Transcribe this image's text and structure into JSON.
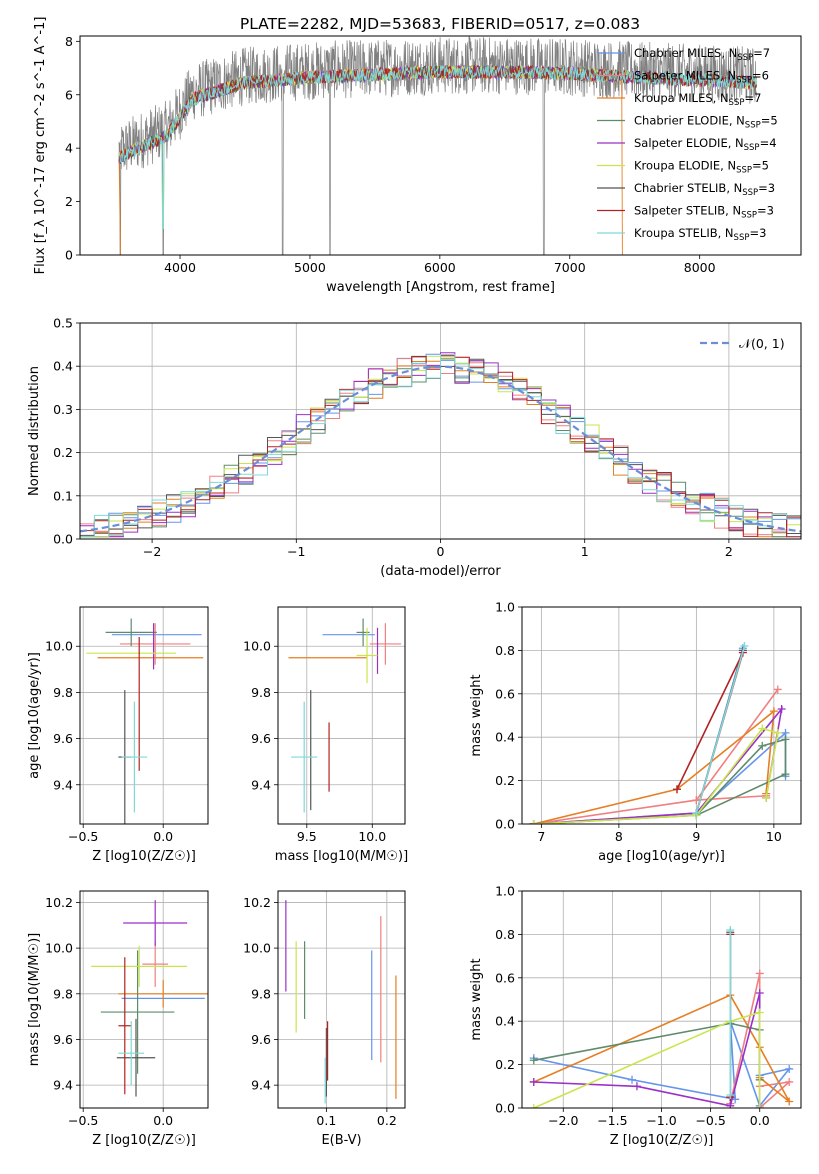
{
  "figure": {
    "title": "PLATE=2282, MJD=53683, FIBERID=0517, z=0.083"
  },
  "models": [
    {
      "name": "Chabrier MILES",
      "nssp": "7",
      "color": "#6495ed"
    },
    {
      "name": "Salpeter MILES",
      "nssp": "6",
      "color": "#f08080"
    },
    {
      "name": "Kroupa MILES",
      "nssp": "7",
      "color": "#e67e22"
    },
    {
      "name": "Chabrier ELODIE",
      "nssp": "5",
      "color": "#5e8c6a"
    },
    {
      "name": "Salpeter ELODIE",
      "nssp": "4",
      "color": "#9b30c8"
    },
    {
      "name": "Kroupa ELODIE",
      "nssp": "5",
      "color": "#c8e64c"
    },
    {
      "name": "Chabrier STELIB",
      "nssp": "3",
      "color": "#555555"
    },
    {
      "name": "Salpeter STELIB",
      "nssp": "3",
      "color": "#b22222"
    },
    {
      "name": "Kroupa STELIB",
      "nssp": "3",
      "color": "#7fd8d8"
    }
  ],
  "chart_data": [
    {
      "id": "spectrum",
      "type": "line",
      "xlabel": "wavelength [Angstrom, rest frame]",
      "ylabel": "Flux [f_λ 10^-17 erg cm^-2 s^-1 A^-1]",
      "xlim": [
        3230,
        8780
      ],
      "ylim": [
        0,
        8.2
      ],
      "xticks": [
        4000,
        5000,
        6000,
        7000,
        8000
      ],
      "yticks": [
        0,
        2,
        4,
        6,
        8
      ],
      "grid": false,
      "legend": "right",
      "data_color": "#808080",
      "continuum": {
        "x": [
          3530,
          3700,
          3900,
          4000,
          4100,
          4300,
          4500,
          5000,
          5500,
          6000,
          6500,
          7000,
          7500,
          8000,
          8440
        ],
        "y": [
          3.9,
          4.3,
          4.7,
          5.4,
          6.1,
          6.4,
          6.7,
          6.9,
          7.0,
          7.1,
          7.1,
          7.05,
          6.9,
          6.8,
          6.7
        ]
      },
      "noise_amplitude": 1.1,
      "dips": [
        3540,
        3870,
        4790,
        5155,
        6800
      ]
    },
    {
      "id": "residuals",
      "type": "histogram",
      "xlabel": "(data-model)/error",
      "ylabel": "Normed distribution",
      "xlim": [
        -2.5,
        2.5
      ],
      "ylim": [
        0,
        0.5
      ],
      "xticks": [
        -2,
        -1,
        0,
        1,
        2
      ],
      "yticks": [
        0,
        0.1,
        0.2,
        0.3,
        0.4,
        0.5
      ],
      "grid": true,
      "legend": "top-right",
      "reference": {
        "label": "𝒩(0, 1)",
        "color": "#6a8fd8",
        "mean": 0,
        "sigma": 1
      },
      "bin_width": 0.1,
      "noise": 0.035
    },
    {
      "id": "age-vs-Z",
      "type": "errorbar",
      "xlabel": "Z [log10(Z/Z☉)]",
      "ylabel": "age [log10(age/yr)]",
      "xlim": [
        -0.52,
        0.28
      ],
      "ylim": [
        9.23,
        10.17
      ],
      "xticks": [
        -0.5,
        0.0
      ],
      "yticks": [
        9.4,
        9.6,
        9.8,
        10.0
      ],
      "points": [
        {
          "x": -0.04,
          "y": 10.05,
          "xerr": 0.28,
          "yerr": 0.0
        },
        {
          "x": -0.05,
          "y": 10.01,
          "xerr": 0.22,
          "yerr": 0.09
        },
        {
          "x": -0.08,
          "y": 9.95,
          "xerr": 0.33,
          "yerr": 0.0
        },
        {
          "x": -0.2,
          "y": 10.06,
          "xerr": 0.16,
          "yerr": 0.06
        },
        {
          "x": -0.06,
          "y": 10.0,
          "xerr": 0.0,
          "yerr": 0.1
        },
        {
          "x": -0.2,
          "y": 9.97,
          "xerr": 0.28,
          "yerr": 0.0
        },
        {
          "x": -0.24,
          "y": 9.52,
          "xerr": 0.04,
          "yerr": 0.29
        },
        {
          "x": -0.15,
          "y": 9.75,
          "xerr": 0.0,
          "yerr": 0.29
        },
        {
          "x": -0.18,
          "y": 9.52,
          "xerr": 0.08,
          "yerr": 0.24
        }
      ]
    },
    {
      "id": "age-vs-mass",
      "type": "errorbar",
      "xlabel": "mass [log10(M/M☉)]",
      "ylabel": "",
      "xlim": [
        9.28,
        10.25
      ],
      "ylim": [
        9.23,
        10.17
      ],
      "xticks": [
        9.5,
        10.0
      ],
      "yticks": [
        9.4,
        9.6,
        9.8,
        10.0
      ],
      "points": [
        {
          "x": 9.82,
          "y": 10.05,
          "xerr": 0.2,
          "yerr": 0.0
        },
        {
          "x": 10.1,
          "y": 10.01,
          "xerr": 0.12,
          "yerr": 0.09
        },
        {
          "x": 9.66,
          "y": 9.95,
          "xerr": 0.3,
          "yerr": 0.0
        },
        {
          "x": 9.93,
          "y": 10.06,
          "xerr": 0.05,
          "yerr": 0.06
        },
        {
          "x": 10.04,
          "y": 9.98,
          "xerr": 0.0,
          "yerr": 0.1
        },
        {
          "x": 9.96,
          "y": 9.96,
          "xerr": 0.08,
          "yerr": 0.12
        },
        {
          "x": 9.53,
          "y": 9.55,
          "xerr": 0.0,
          "yerr": 0.26
        },
        {
          "x": 9.67,
          "y": 9.52,
          "xerr": 0.0,
          "yerr": 0.15
        },
        {
          "x": 9.48,
          "y": 9.52,
          "xerr": 0.1,
          "yerr": 0.24
        }
      ]
    },
    {
      "id": "weight-vs-age",
      "type": "line",
      "xlabel": "age [log10(age/yr)]",
      "ylabel": "mass weight",
      "xlim": [
        6.75,
        10.35
      ],
      "ylim": [
        0,
        1.0
      ],
      "xticks": [
        7,
        8,
        9,
        10
      ],
      "yticks": [
        0.0,
        0.2,
        0.4,
        0.6,
        0.8,
        1.0
      ],
      "grid": true,
      "series": [
        {
          "x": [
            6.9,
            9.0,
            9.6,
            9.0,
            10.15,
            10.15
          ],
          "y": [
            0.0,
            0.05,
            0.81,
            0.05,
            0.42,
            0.22
          ]
        },
        {
          "x": [
            6.9,
            9.0,
            10.05,
            9.0,
            9.9
          ],
          "y": [
            0.0,
            0.11,
            0.62,
            0.11,
            0.13
          ]
        },
        {
          "x": [
            6.9,
            8.75,
            10.0,
            9.9
          ],
          "y": [
            0.0,
            0.16,
            0.52,
            0.14
          ]
        },
        {
          "x": [
            6.9,
            9.0,
            9.85,
            10.15,
            10.15,
            9.0
          ],
          "y": [
            0.0,
            0.04,
            0.36,
            0.39,
            0.23,
            0.04
          ]
        },
        {
          "x": [
            6.9,
            9.0,
            10.1,
            9.9
          ],
          "y": [
            0.0,
            0.05,
            0.53,
            0.12
          ]
        },
        {
          "x": [
            6.9,
            9.0,
            9.85,
            10.05,
            9.9
          ],
          "y": [
            0.0,
            0.04,
            0.44,
            0.42,
            0.12
          ]
        },
        {
          "x": [
            9.0,
            9.6,
            9.0
          ],
          "y": [
            0.05,
            0.8,
            0.05
          ]
        },
        {
          "x": [
            8.75,
            9.6,
            9.0
          ],
          "y": [
            0.16,
            0.79,
            0.05
          ]
        },
        {
          "x": [
            9.0,
            9.62,
            9.0
          ],
          "y": [
            0.05,
            0.82,
            0.05
          ]
        }
      ]
    },
    {
      "id": "mass-vs-Z",
      "type": "errorbar",
      "xlabel": "Z [log10(Z/Z☉)]",
      "ylabel": "mass [log10(M/M☉)]",
      "xlim": [
        -0.52,
        0.28
      ],
      "ylim": [
        9.3,
        10.25
      ],
      "xticks": [
        -0.5,
        0.0
      ],
      "yticks": [
        9.4,
        9.6,
        9.8,
        10.0,
        10.2
      ],
      "points": [
        {
          "x": 0.0,
          "y": 9.78,
          "xerr": 0.26,
          "yerr": 0.0
        },
        {
          "x": -0.05,
          "y": 9.93,
          "xerr": 0.08,
          "yerr": 0.1
        },
        {
          "x": 0.0,
          "y": 9.8,
          "xerr": 0.28,
          "yerr": 0.06
        },
        {
          "x": -0.16,
          "y": 9.72,
          "xerr": 0.23,
          "yerr": 0.27
        },
        {
          "x": -0.05,
          "y": 10.11,
          "xerr": 0.2,
          "yerr": 0.1
        },
        {
          "x": -0.15,
          "y": 9.92,
          "xerr": 0.3,
          "yerr": 0.09
        },
        {
          "x": -0.17,
          "y": 9.52,
          "xerr": 0.12,
          "yerr": 0.17
        },
        {
          "x": -0.24,
          "y": 9.66,
          "xerr": 0.04,
          "yerr": 0.3
        },
        {
          "x": -0.2,
          "y": 9.54,
          "xerr": 0.08,
          "yerr": 0.14
        }
      ]
    },
    {
      "id": "mass-vs-EBV",
      "type": "errorbar",
      "xlabel": "E(B-V)",
      "ylabel": "",
      "xlim": [
        0.02,
        0.23
      ],
      "ylim": [
        9.3,
        10.25
      ],
      "xticks": [
        0.1,
        0.2
      ],
      "yticks": [
        9.4,
        9.6,
        9.8,
        10.0,
        10.2
      ],
      "points": [
        {
          "x": 0.175,
          "y": 9.75,
          "xerr": 0.0,
          "yerr": 0.24
        },
        {
          "x": 0.19,
          "y": 9.82,
          "xerr": 0.0,
          "yerr": 0.32
        },
        {
          "x": 0.215,
          "y": 9.61,
          "xerr": 0.0,
          "yerr": 0.27
        },
        {
          "x": 0.064,
          "y": 9.86,
          "xerr": 0.0,
          "yerr": 0.17
        },
        {
          "x": 0.033,
          "y": 10.01,
          "xerr": 0.0,
          "yerr": 0.2
        },
        {
          "x": 0.05,
          "y": 9.83,
          "xerr": 0.0,
          "yerr": 0.2
        },
        {
          "x": 0.1,
          "y": 9.5,
          "xerr": 0.0,
          "yerr": 0.15
        },
        {
          "x": 0.102,
          "y": 9.55,
          "xerr": 0.0,
          "yerr": 0.13
        },
        {
          "x": 0.098,
          "y": 9.42,
          "xerr": 0.0,
          "yerr": 0.1
        }
      ]
    },
    {
      "id": "weight-vs-Z",
      "type": "line",
      "xlabel": "Z [log10(Z/Z☉)]",
      "ylabel": "mass weight",
      "xlim": [
        -2.42,
        0.42
      ],
      "ylim": [
        0,
        1.0
      ],
      "xticks": [
        -2.0,
        -1.5,
        -1.0,
        -0.5,
        0.0
      ],
      "yticks": [
        0.0,
        0.2,
        0.4,
        0.6,
        0.8,
        1.0
      ],
      "grid": true,
      "series": [
        {
          "x": [
            -2.3,
            -1.3,
            -0.25,
            -0.3,
            0.0,
            0.3,
            0.0
          ],
          "y": [
            0.23,
            0.13,
            0.04,
            0.4,
            0.01,
            0.18,
            0.15
          ]
        },
        {
          "x": [
            -0.3,
            0.0,
            0.0,
            0.3,
            0.0
          ],
          "y": [
            0.02,
            0.62,
            0.1,
            0.12,
            0.0
          ]
        },
        {
          "x": [
            -2.3,
            -0.3,
            0.0,
            0.3,
            0.0
          ],
          "y": [
            0.12,
            0.52,
            0.28,
            0.03,
            0.14
          ]
        },
        {
          "x": [
            -2.3,
            -0.3,
            0.0,
            0.0
          ],
          "y": [
            0.22,
            0.39,
            0.36,
            0.13
          ]
        },
        {
          "x": [
            -2.3,
            -1.25,
            -0.3,
            0.0,
            0.0
          ],
          "y": [
            0.12,
            0.1,
            0.01,
            0.53,
            0.0
          ]
        },
        {
          "x": [
            -2.3,
            -0.3,
            0.0,
            0.0
          ],
          "y": [
            0.0,
            0.4,
            0.44,
            0.0
          ]
        },
        {
          "x": [
            -0.3,
            -0.3
          ],
          "y": [
            0.81,
            0.05
          ]
        },
        {
          "x": [
            -0.3,
            -0.3
          ],
          "y": [
            0.8,
            0.05
          ]
        },
        {
          "x": [
            -0.3,
            -0.3
          ],
          "y": [
            0.82,
            0.06
          ]
        }
      ]
    }
  ]
}
